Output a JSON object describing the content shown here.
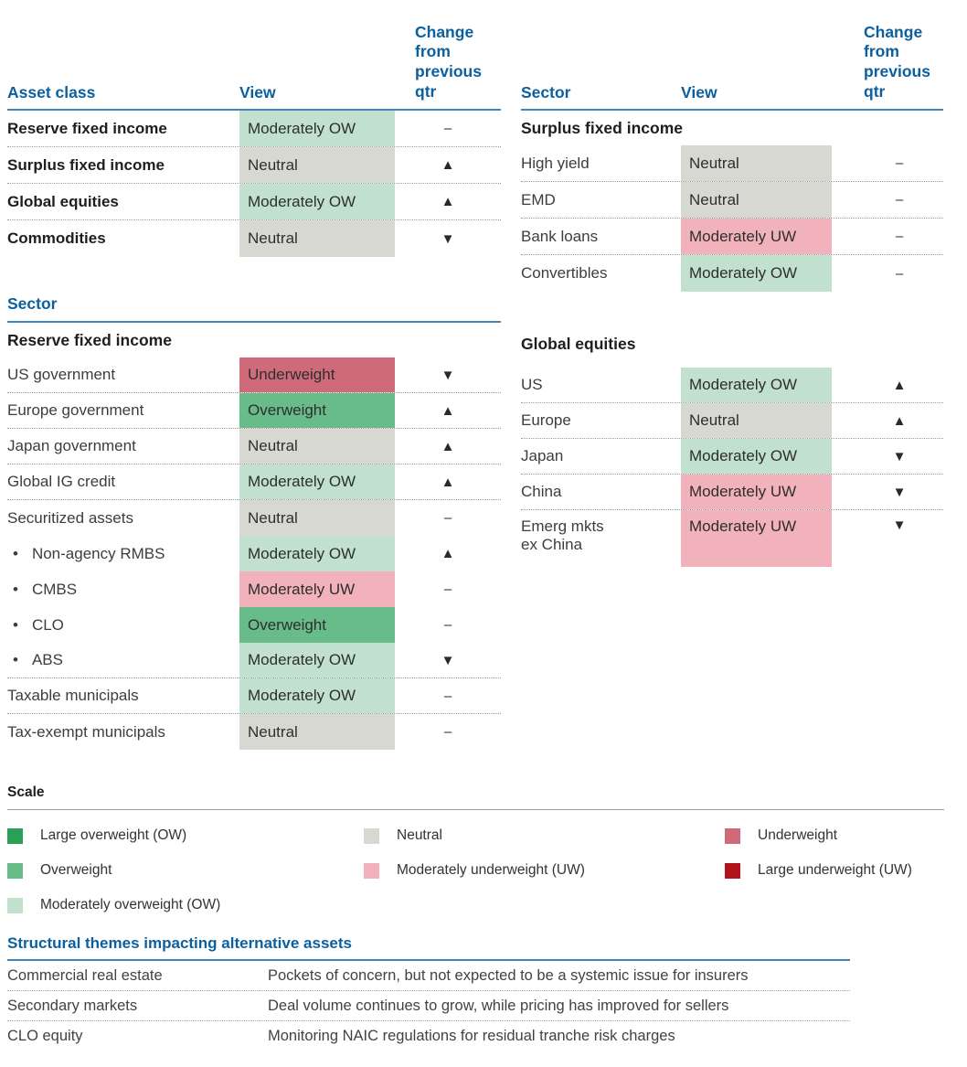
{
  "palette": {
    "large_ow": "#2b9e58",
    "ow": "#67bc8a",
    "mod_ow": "#c1e0ce",
    "neutral": "#d8d8d2",
    "mod_uw": "#f1b2bb",
    "uw": "#cf6b79",
    "large_uw": "#b2141d",
    "heading_blue": "#0c5f9f"
  },
  "misc": {
    "bullet": "•"
  },
  "asset_class_table": {
    "col_asset": "Asset class",
    "col_view": "View",
    "col_change": "Change from previous qtr",
    "rows": [
      {
        "label": "Reserve fixed income",
        "view": "Moderately OW",
        "bg": "#c1e0ce",
        "change": "–"
      },
      {
        "label": "Surplus fixed income",
        "view": "Neutral",
        "bg": "#d8d8d2",
        "change": "▲"
      },
      {
        "label": "Global equities",
        "view": "Moderately OW",
        "bg": "#c1e0ce",
        "change": "▲"
      },
      {
        "label": "Commodities",
        "view": "Neutral",
        "bg": "#d8d8d2",
        "change": "▼"
      }
    ]
  },
  "sector_right1": {
    "col_sector": "Sector",
    "col_view": "View",
    "col_change": "Change from previous qtr",
    "subheader": "Surplus fixed income",
    "rows": [
      {
        "label": "High yield",
        "view": "Neutral",
        "bg": "#d8d8d2",
        "change": "–"
      },
      {
        "label": "EMD",
        "view": "Neutral",
        "bg": "#d8d8d2",
        "change": "–"
      },
      {
        "label": "Bank loans",
        "view": "Moderately UW",
        "bg": "#f1b2bb",
        "change": "–"
      },
      {
        "label": "Convertibles",
        "view": "Moderately OW",
        "bg": "#c1e0ce",
        "change": "–"
      }
    ]
  },
  "sector_left": {
    "title": "Sector",
    "subheader": "Reserve fixed income",
    "rows": [
      {
        "label": "US government",
        "view": "Underweight",
        "bg": "#cf6b79",
        "change": "▼"
      },
      {
        "label": "Europe government",
        "view": "Overweight",
        "bg": "#67bc8a",
        "change": "▲"
      },
      {
        "label": "Japan government",
        "view": "Neutral",
        "bg": "#d8d8d2",
        "change": "▲"
      },
      {
        "label": "Global IG credit",
        "view": "Moderately OW",
        "bg": "#c1e0ce",
        "change": "▲"
      },
      {
        "label": "Securitized assets",
        "view": "Neutral",
        "bg": "#d8d8d2",
        "change": "–"
      },
      {
        "label": "Non-agency RMBS",
        "view": "Moderately OW",
        "bg": "#c1e0ce",
        "change": "▲"
      },
      {
        "label": "CMBS",
        "view": "Moderately UW",
        "bg": "#f1b2bb",
        "change": "–"
      },
      {
        "label": "CLO",
        "view": "Overweight",
        "bg": "#67bc8a",
        "change": "–"
      },
      {
        "label": "ABS",
        "view": "Moderately OW",
        "bg": "#c1e0ce",
        "change": "▼"
      },
      {
        "label": "Taxable municipals",
        "view": "Moderately OW",
        "bg": "#c1e0ce",
        "change": "–"
      },
      {
        "label": "Tax-exempt municipals",
        "view": "Neutral",
        "bg": "#d8d8d2",
        "change": "–"
      }
    ]
  },
  "sector_right2": {
    "title": "Global equities",
    "rows": [
      {
        "label": "US",
        "view": "Moderately OW",
        "bg": "#c1e0ce",
        "change": "▲"
      },
      {
        "label": "Europe",
        "view": "Neutral",
        "bg": "#d8d8d2",
        "change": "▲"
      },
      {
        "label": "Japan",
        "view": "Moderately OW",
        "bg": "#c1e0ce",
        "change": "▼"
      },
      {
        "label": "China",
        "view": "Moderately UW",
        "bg": "#f1b2bb",
        "change": "▼"
      },
      {
        "label": "Emerg mkts",
        "label2": "ex China",
        "view": "Moderately UW",
        "bg": "#f1b2bb",
        "change": "▼"
      }
    ]
  },
  "scale": {
    "title": "Scale",
    "items": [
      {
        "label": "Large overweight (OW)",
        "color": "#2b9e58"
      },
      {
        "label": "Overweight",
        "color": "#67bc8a"
      },
      {
        "label": "Moderately overweight (OW)",
        "color": "#c1e0ce"
      },
      {
        "label": "Neutral",
        "color": "#d8d8d2"
      },
      {
        "label": "Moderately underweight (UW)",
        "color": "#f1b2bb"
      },
      {
        "label": "Underweight",
        "color": "#cf6b79"
      },
      {
        "label": "Large underweight (UW)",
        "color": "#b2141d"
      }
    ]
  },
  "themes": {
    "title": "Structural themes impacting alternative assets",
    "rows": [
      {
        "label": "Commercial real estate",
        "desc": "Pockets of concern, but not expected to be a systemic issue for insurers"
      },
      {
        "label": "Secondary markets",
        "desc": "Deal volume continues to grow, while pricing has improved for sellers"
      },
      {
        "label": "CLO equity",
        "desc": "Monitoring NAIC regulations for residual tranche risk charges"
      }
    ]
  }
}
